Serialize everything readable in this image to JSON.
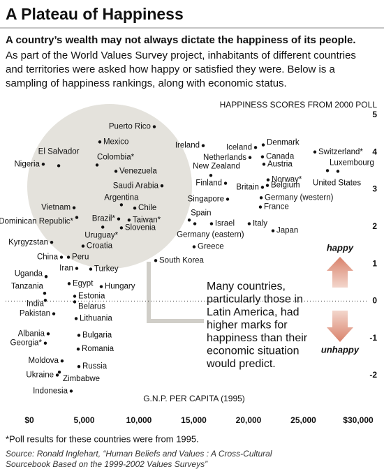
{
  "chart_data": {
    "type": "scatter",
    "title": "A Plateau of Happiness",
    "subtitle": "A country’s wealth may not always dictate the happiness of its people.",
    "intro": [
      "As part of the World Values Survey project, inhabitants of different countries",
      "and territories were asked how happy or satisfied they were. Below is a",
      "sampling of happiness rankings, along with economic status."
    ],
    "y_label": "HAPPINESS SCORES FROM 2000 POLL",
    "x_label": "G.N.P. PER CAPITA (1995)",
    "annotation": [
      "Many countries,",
      "particularly those in",
      "Latin America, had",
      "higher marks for",
      "happiness than their",
      "economic situation",
      "would predict."
    ],
    "happy_label": "happy",
    "unhappy_label": "unhappy",
    "footnote": "*Poll results for these countries were from 1995.",
    "source": [
      "Source: Ronald Inglehart, “Human Beliefs and Values : A Cross-Cultural",
      "Sourcebook Based on the 1999-2002 Values Surveys”"
    ],
    "color": "#111111",
    "xlim": [
      0,
      30000
    ],
    "ylim": [
      -2,
      5
    ],
    "xticks": [
      {
        "value": 0,
        "label": "$0"
      },
      {
        "value": 5000,
        "label": "5,000"
      },
      {
        "value": 10000,
        "label": "10,000"
      },
      {
        "value": 15000,
        "label": "15,000"
      },
      {
        "value": 20000,
        "label": "20,000"
      },
      {
        "value": 25000,
        "label": "25,000"
      },
      {
        "value": 30000,
        "label": "$30,000"
      }
    ],
    "yticks": [
      5,
      4,
      3,
      2,
      1,
      0,
      -1,
      -2
    ],
    "labels": [
      "Puerto Rico",
      "Mexico",
      "El Salvador",
      "Nigeria",
      "Colombia*",
      "Venezuela",
      "Saudi Arabia",
      "Argentina",
      "Chile",
      "Vietnam",
      "Dominican Republic*",
      "Brazil*",
      "Taiwan*",
      "Uruguay*",
      "Slovenia",
      "Croatia",
      "Kyrgyzstan",
      "China",
      "Peru",
      "Iran",
      "Turkey",
      "Uganda",
      "Egypt",
      "Hungary",
      "Tanzania",
      "Estonia",
      "India",
      "Belarus",
      "Pakistan",
      "Lithuania",
      "Albania",
      "Bulgaria",
      "Georgia*",
      "Romania",
      "Moldova",
      "Russia",
      "Ukraine",
      "Zimbabwe",
      "Indonesia",
      "South Korea",
      "Greece",
      "Spain",
      "Germany (eastern)",
      "Israel",
      "Italy",
      "Japan",
      "Ireland",
      "Iceland",
      "Denmark",
      "Netherlands",
      "Canada",
      "Austria",
      "Switzerland*",
      "Luxembourg",
      "United States",
      "New Zealand",
      "Finland",
      "Britain",
      "Norway*",
      "Belgium",
      "Singapore",
      "Germany (western)",
      "France"
    ],
    "x": [
      11400,
      6430,
      2680,
      1270,
      6180,
      7900,
      12100,
      8400,
      9620,
      4080,
      4330,
      8150,
      9100,
      6700,
      8400,
      4900,
      2040,
      2930,
      3570,
      4330,
      5600,
      1530,
      3630,
      6560,
      1400,
      4140,
      1460,
      4140,
      2230,
      4270,
      1720,
      4520,
      1460,
      4460,
      2990,
      4520,
      2550,
      2740,
      3820,
      11530,
      15030,
      14590,
      15100,
      16620,
      20060,
      22230,
      15860,
      20640,
      21340,
      20130,
      21270,
      21400,
      26050,
      28150,
      27200,
      16560,
      17900,
      21270,
      21780,
      21720,
      18090,
      21150,
      21080
    ],
    "values": [
      4.69,
      4.28,
      3.64,
      3.68,
      3.66,
      3.49,
      3.1,
      2.59,
      2.5,
      2.51,
      2.25,
      2.21,
      2.18,
      1.99,
      1.97,
      1.48,
      1.58,
      1.18,
      1.18,
      0.88,
      0.86,
      0.66,
      0.47,
      0.39,
      0.21,
      0.13,
      0.02,
      -0.02,
      -0.34,
      -0.47,
      -0.88,
      -0.92,
      -1.13,
      -1.29,
      -1.61,
      -1.76,
      -1.99,
      -1.91,
      -2.42,
      1.09,
      1.46,
      2.18,
      2.08,
      2.08,
      2.08,
      1.89,
      4.18,
      4.13,
      4.2,
      3.86,
      3.88,
      3.68,
      4.01,
      3.49,
      3.51,
      3.38,
      3.17,
      3.06,
      3.26,
      3.11,
      2.74,
      2.78,
      2.53
    ]
  }
}
